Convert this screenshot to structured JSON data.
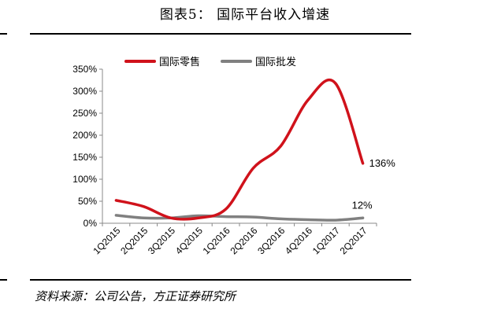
{
  "figure": {
    "title": "图表5：    国际平台收入增速",
    "source": "资料来源：公司公告，方正证券研究所"
  },
  "chart_data": {
    "type": "line",
    "categories": [
      "1Q2015",
      "2Q2015",
      "3Q2015",
      "4Q2015",
      "1Q2016",
      "2Q2016",
      "3Q2016",
      "4Q2016",
      "1Q2017",
      "2Q2017"
    ],
    "ylim": [
      0,
      350
    ],
    "yticks": [
      0,
      50,
      100,
      150,
      200,
      250,
      300,
      350
    ],
    "ytick_suffix": "%",
    "grid": false,
    "legend_position": "top",
    "series": [
      {
        "name": "国际零售",
        "color": "#d0121b",
        "values": [
          52,
          38,
          12,
          12,
          32,
          125,
          175,
          280,
          318,
          136
        ],
        "end_label": "136%"
      },
      {
        "name": "国际批发",
        "color": "#808080",
        "values": [
          18,
          12,
          12,
          17,
          15,
          14,
          10,
          8,
          7,
          12
        ],
        "end_label": "12%"
      }
    ]
  }
}
